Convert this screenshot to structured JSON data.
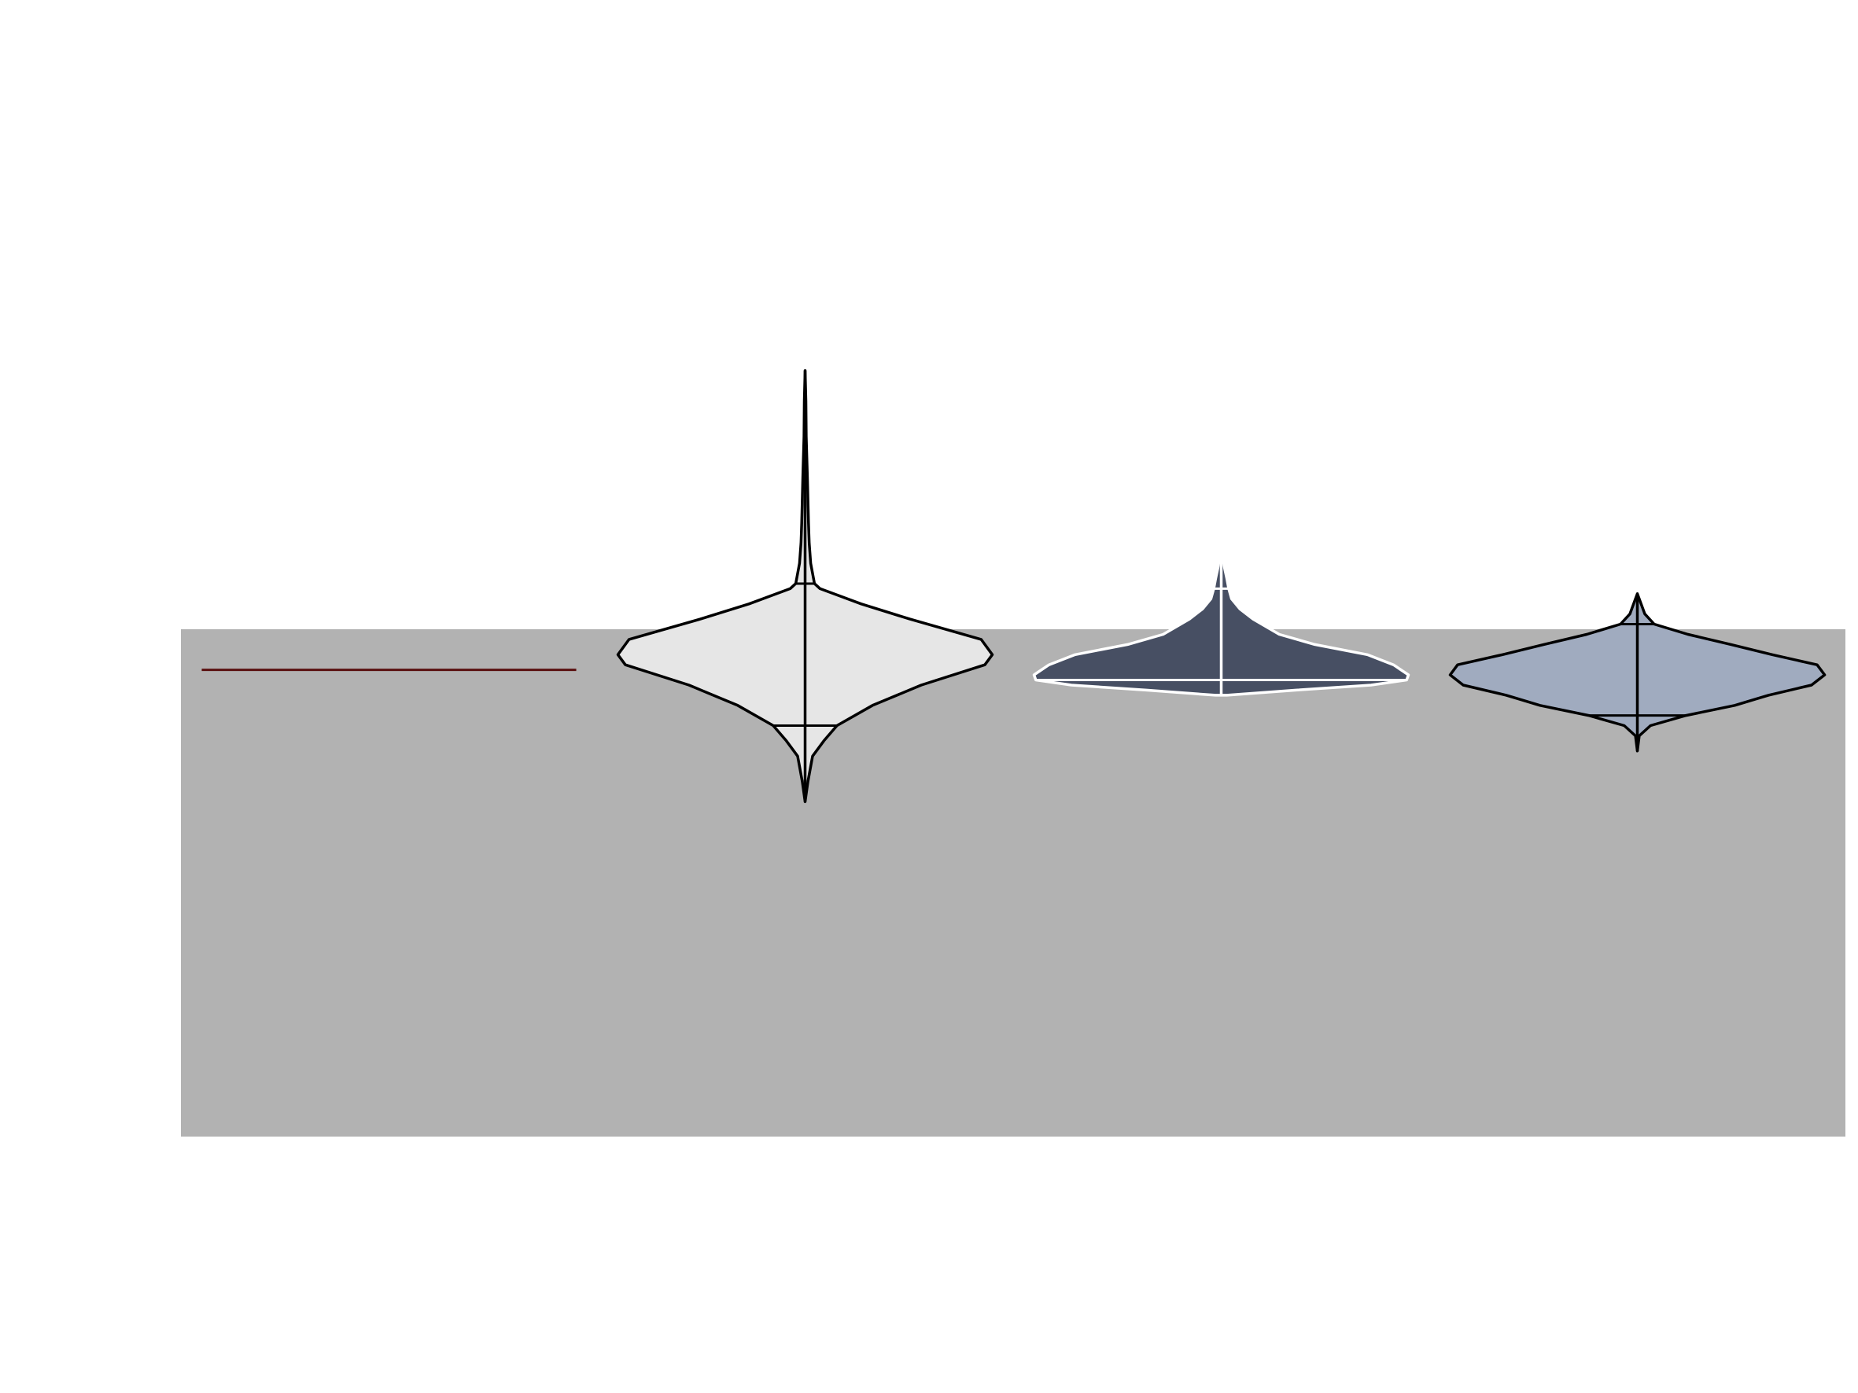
{
  "chart_data": {
    "type": "violin",
    "title": "",
    "xlabel": "",
    "ylabel": "",
    "categories": [
      "",
      "",
      "",
      ""
    ],
    "ylim": [
      -1.0,
      1.0
    ],
    "shaded_band": {
      "y_from": -1.0,
      "y_to": 0.0,
      "color": "#b2b2b2"
    },
    "series": [
      {
        "kind": "line",
        "value": -0.08,
        "color": "#5a1010"
      },
      {
        "kind": "violin",
        "fill": "#e6e6e6",
        "edge": "#000000",
        "min": -0.34,
        "q1": -0.19,
        "q3": 0.09,
        "max": 0.51,
        "density": [
          [
            -0.34,
            0.0
          ],
          [
            -0.3,
            0.015
          ],
          [
            -0.25,
            0.04
          ],
          [
            -0.22,
            0.1
          ],
          [
            -0.19,
            0.17
          ],
          [
            -0.15,
            0.36
          ],
          [
            -0.11,
            0.62
          ],
          [
            -0.07,
            0.96
          ],
          [
            -0.05,
            1.0
          ],
          [
            -0.02,
            0.94
          ],
          [
            0.02,
            0.56
          ],
          [
            0.05,
            0.3
          ],
          [
            0.08,
            0.08
          ],
          [
            0.09,
            0.05
          ],
          [
            0.13,
            0.03
          ],
          [
            0.17,
            0.022
          ],
          [
            0.21,
            0.018
          ],
          [
            0.3,
            0.012
          ],
          [
            0.38,
            0.006
          ],
          [
            0.45,
            0.004
          ],
          [
            0.51,
            0.0
          ]
        ]
      },
      {
        "kind": "violin",
        "fill": "#474f63",
        "edge": "#ffffff",
        "min": -0.13,
        "q1": -0.1,
        "q3": 0.08,
        "max": 0.16,
        "density": [
          [
            -0.13,
            0.03
          ],
          [
            -0.12,
            0.4
          ],
          [
            -0.11,
            0.8
          ],
          [
            -0.1,
            0.99
          ],
          [
            -0.09,
            1.0
          ],
          [
            -0.07,
            0.92
          ],
          [
            -0.05,
            0.78
          ],
          [
            -0.03,
            0.5
          ],
          [
            -0.01,
            0.31
          ],
          [
            0.02,
            0.17
          ],
          [
            0.04,
            0.1
          ],
          [
            0.06,
            0.055
          ],
          [
            0.08,
            0.04
          ],
          [
            0.1,
            0.03
          ],
          [
            0.12,
            0.018
          ],
          [
            0.16,
            0.0
          ]
        ]
      },
      {
        "kind": "violin",
        "fill": "#a0abbf",
        "edge": "#000000",
        "min": -0.24,
        "q1": -0.17,
        "q3": 0.01,
        "max": 0.07,
        "density": [
          [
            -0.24,
            0.0
          ],
          [
            -0.21,
            0.01
          ],
          [
            -0.19,
            0.07
          ],
          [
            -0.17,
            0.26
          ],
          [
            -0.15,
            0.52
          ],
          [
            -0.13,
            0.7
          ],
          [
            -0.11,
            0.93
          ],
          [
            -0.09,
            1.0
          ],
          [
            -0.07,
            0.96
          ],
          [
            -0.05,
            0.72
          ],
          [
            -0.03,
            0.5
          ],
          [
            -0.01,
            0.27
          ],
          [
            0.01,
            0.09
          ],
          [
            0.03,
            0.04
          ],
          [
            0.05,
            0.02
          ],
          [
            0.07,
            0.0
          ]
        ]
      }
    ]
  }
}
